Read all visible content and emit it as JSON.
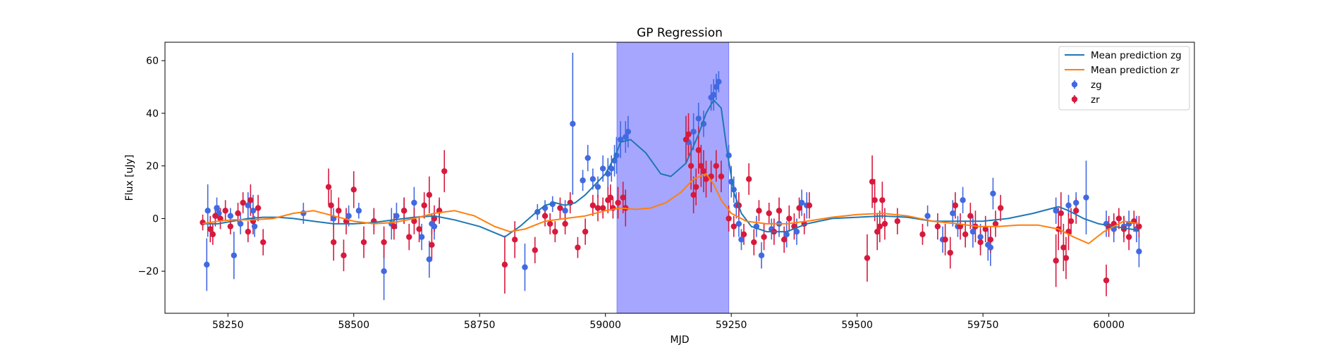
{
  "chart_data": {
    "type": "scatter",
    "title": "GP Regression",
    "xlabel": "MJD",
    "ylabel": "Flux [uJy]",
    "xlim": [
      58125,
      60170
    ],
    "ylim": [
      -36,
      67
    ],
    "xticks": [
      58250,
      58500,
      58750,
      59000,
      59250,
      59500,
      59750,
      60000
    ],
    "yticks": [
      -20,
      0,
      20,
      40,
      60
    ],
    "grid": false,
    "legend_position": "upper right",
    "shaded_region": {
      "x_start": 59023,
      "x_end": 59245,
      "color": "#a6a6ff"
    },
    "lines": [
      {
        "name": "Mean prediction zg",
        "color": "#1f77b4",
        "x": [
          58200,
          58230,
          58260,
          58290,
          58320,
          58350,
          58380,
          58420,
          58460,
          58500,
          58540,
          58580,
          58620,
          58660,
          58700,
          58750,
          58800,
          58830,
          58860,
          58880,
          58900,
          58920,
          58940,
          58960,
          58980,
          59000,
          59020,
          59030,
          59050,
          59080,
          59110,
          59130,
          59160,
          59185,
          59200,
          59215,
          59230,
          59240,
          59255,
          59270,
          59290,
          59320,
          59360,
          59400,
          59450,
          59500,
          59550,
          59600,
          59650,
          59700,
          59750,
          59800,
          59850,
          59900,
          59920,
          59950,
          59980,
          60010,
          60060
        ],
        "y": [
          -2,
          -2,
          -1,
          0,
          0.5,
          0.5,
          0,
          -1,
          -2,
          -2,
          -1.5,
          -0.5,
          0.5,
          1,
          -0.5,
          -3,
          -7,
          -3,
          2,
          5,
          6,
          5,
          6,
          9,
          13,
          17,
          24,
          29,
          30,
          25,
          17,
          16,
          21,
          32,
          40,
          45,
          42,
          28,
          10,
          2,
          -3,
          -5,
          -5,
          -2,
          0,
          0.5,
          1,
          0.5,
          -1,
          -1,
          -1,
          0,
          2,
          4.5,
          3,
          0,
          -2,
          -3,
          -4.5
        ]
      },
      {
        "name": "Mean prediction zr",
        "color": "#ff7f0e",
        "x": [
          58200,
          58230,
          58260,
          58300,
          58340,
          58380,
          58420,
          58460,
          58500,
          58540,
          58580,
          58620,
          58660,
          58700,
          58740,
          58780,
          58810,
          58840,
          58880,
          58920,
          58960,
          59000,
          59030,
          59060,
          59090,
          59120,
          59150,
          59175,
          59200,
          59215,
          59230,
          59250,
          59280,
          59320,
          59360,
          59400,
          59450,
          59500,
          59550,
          59600,
          59650,
          59700,
          59740,
          59780,
          59820,
          59860,
          59900,
          59930,
          59960,
          59990,
          60030,
          60060
        ],
        "y": [
          -2,
          -1,
          -0.5,
          -0.5,
          0,
          2,
          3,
          1,
          -1,
          -2,
          -1.5,
          0,
          2,
          3,
          1,
          -3,
          -5,
          -4,
          -1,
          0,
          1,
          3,
          4,
          3.5,
          4,
          6,
          10,
          15,
          17,
          13,
          7,
          2,
          -1,
          -2,
          -2,
          -1,
          0.5,
          1.5,
          2,
          1,
          -1,
          -2,
          -3,
          -3,
          -2.5,
          -2.5,
          -4,
          -7,
          -9.5,
          -5,
          -1,
          -2
        ]
      }
    ],
    "series": [
      {
        "name": "zg",
        "color": "#4169e1",
        "points": [
          [
            58208,
            -17.5,
            10
          ],
          [
            58210,
            3,
            10
          ],
          [
            58228,
            4,
            4
          ],
          [
            58232,
            2,
            3
          ],
          [
            58255,
            1,
            3
          ],
          [
            58262,
            -14,
            9
          ],
          [
            58275,
            -2,
            4
          ],
          [
            58290,
            5,
            5
          ],
          [
            58300,
            3,
            6
          ],
          [
            58303,
            -3,
            4
          ],
          [
            58400,
            2,
            4
          ],
          [
            58460,
            0,
            4
          ],
          [
            58490,
            1,
            4
          ],
          [
            58510,
            3,
            3
          ],
          [
            58540,
            -1,
            4
          ],
          [
            58560,
            -20,
            11
          ],
          [
            58575,
            -2,
            6
          ],
          [
            58585,
            1,
            5
          ],
          [
            58600,
            3,
            5
          ],
          [
            58620,
            6,
            6
          ],
          [
            58635,
            -7,
            5
          ],
          [
            58650,
            -15.5,
            7
          ],
          [
            58655,
            -2,
            4
          ],
          [
            58660,
            -3,
            5
          ],
          [
            58670,
            3,
            4
          ],
          [
            58840,
            -18.5,
            9
          ],
          [
            58865,
            2.5,
            3
          ],
          [
            58880,
            4,
            3
          ],
          [
            58895,
            5.5,
            3
          ],
          [
            58920,
            3,
            4
          ],
          [
            58935,
            36,
            27
          ],
          [
            58955,
            14.5,
            4
          ],
          [
            58965,
            23,
            5
          ],
          [
            58975,
            15,
            4
          ],
          [
            58985,
            12,
            4
          ],
          [
            58995,
            19,
            5
          ],
          [
            59005,
            17,
            6
          ],
          [
            59012,
            19,
            5
          ],
          [
            59018,
            22,
            6
          ],
          [
            59022,
            24,
            7
          ],
          [
            59030,
            30,
            7
          ],
          [
            59040,
            31,
            6
          ],
          [
            59045,
            33,
            6
          ],
          [
            59165,
            29,
            6
          ],
          [
            59175,
            33,
            7
          ],
          [
            59185,
            38,
            6
          ],
          [
            59195,
            36,
            5
          ],
          [
            59210,
            46,
            5
          ],
          [
            59215,
            47,
            6
          ],
          [
            59220,
            50,
            5
          ],
          [
            59225,
            52,
            4
          ],
          [
            59245,
            24,
            4
          ],
          [
            59250,
            14,
            6
          ],
          [
            59255,
            11,
            5
          ],
          [
            59260,
            5,
            5
          ],
          [
            59265,
            -2,
            5
          ],
          [
            59270,
            -8,
            4
          ],
          [
            59300,
            -3,
            4
          ],
          [
            59310,
            -14,
            5
          ],
          [
            59330,
            -4,
            4
          ],
          [
            59345,
            -2,
            5
          ],
          [
            59360,
            -6,
            5
          ],
          [
            59380,
            -5,
            5
          ],
          [
            59390,
            6,
            5
          ],
          [
            59400,
            5,
            5
          ],
          [
            59640,
            1,
            4
          ],
          [
            59670,
            -8,
            5
          ],
          [
            59690,
            2,
            5
          ],
          [
            59700,
            -3,
            4
          ],
          [
            59710,
            7,
            5
          ],
          [
            59730,
            -5,
            6
          ],
          [
            59745,
            -7,
            5
          ],
          [
            59760,
            -10,
            6
          ],
          [
            59765,
            -11,
            7
          ],
          [
            59770,
            9.5,
            6
          ],
          [
            59895,
            3,
            5
          ],
          [
            59920,
            5,
            4
          ],
          [
            59935,
            6,
            4
          ],
          [
            59955,
            8,
            14
          ],
          [
            59995,
            -2,
            5
          ],
          [
            60010,
            -4,
            5
          ],
          [
            60030,
            -3,
            4
          ],
          [
            60040,
            -2,
            5
          ],
          [
            60055,
            -4,
            5
          ],
          [
            60060,
            -12.5,
            6
          ]
        ]
      },
      {
        "name": "zr",
        "color": "#d7193d",
        "points": [
          [
            58200,
            -1.5,
            3
          ],
          [
            58215,
            -4,
            5
          ],
          [
            58220,
            -6,
            4
          ],
          [
            58225,
            1,
            4
          ],
          [
            58235,
            0,
            4
          ],
          [
            58245,
            3,
            4
          ],
          [
            58255,
            -3,
            3
          ],
          [
            58270,
            2,
            4
          ],
          [
            58280,
            6,
            4
          ],
          [
            58290,
            -5,
            4
          ],
          [
            58295,
            7,
            6
          ],
          [
            58300,
            -1,
            5
          ],
          [
            58310,
            4,
            5
          ],
          [
            58320,
            -9,
            5
          ],
          [
            58450,
            12,
            7
          ],
          [
            58455,
            5,
            6
          ],
          [
            58460,
            -9,
            7
          ],
          [
            58470,
            3,
            5
          ],
          [
            58480,
            -14,
            6
          ],
          [
            58485,
            -1,
            5
          ],
          [
            58500,
            11,
            7
          ],
          [
            58520,
            -9,
            6
          ],
          [
            58540,
            -1,
            5
          ],
          [
            58560,
            -9,
            6
          ],
          [
            58580,
            -3,
            5
          ],
          [
            58600,
            3,
            5
          ],
          [
            58610,
            -7,
            5
          ],
          [
            58620,
            -1,
            5
          ],
          [
            58630,
            -4,
            5
          ],
          [
            58640,
            5,
            5
          ],
          [
            58650,
            9,
            7
          ],
          [
            58655,
            -10,
            6
          ],
          [
            58660,
            0,
            5
          ],
          [
            58670,
            3,
            5
          ],
          [
            58680,
            18,
            8
          ],
          [
            58800,
            -17.5,
            11
          ],
          [
            58820,
            -8,
            7
          ],
          [
            58860,
            -12,
            5
          ],
          [
            58880,
            1,
            4
          ],
          [
            58890,
            -2,
            4
          ],
          [
            58900,
            -5,
            4
          ],
          [
            58910,
            4,
            4
          ],
          [
            58920,
            -2,
            4
          ],
          [
            58930,
            6,
            4
          ],
          [
            58945,
            -11,
            4
          ],
          [
            58960,
            -5,
            5
          ],
          [
            58975,
            5,
            4
          ],
          [
            58985,
            4,
            5
          ],
          [
            58995,
            4,
            4
          ],
          [
            59005,
            7,
            5
          ],
          [
            59010,
            8,
            5
          ],
          [
            59015,
            4,
            4
          ],
          [
            59025,
            6,
            6
          ],
          [
            59035,
            8,
            6
          ],
          [
            59040,
            4,
            7
          ],
          [
            59160,
            30,
            9
          ],
          [
            59165,
            32,
            8
          ],
          [
            59170,
            20,
            9
          ],
          [
            59175,
            9,
            7
          ],
          [
            59180,
            12,
            7
          ],
          [
            59185,
            26,
            9
          ],
          [
            59190,
            20,
            8
          ],
          [
            59195,
            18,
            8
          ],
          [
            59200,
            15,
            7
          ],
          [
            59210,
            16,
            6
          ],
          [
            59220,
            20,
            6
          ],
          [
            59230,
            16,
            6
          ],
          [
            59245,
            0,
            5
          ],
          [
            59255,
            -3,
            4
          ],
          [
            59265,
            5,
            5
          ],
          [
            59275,
            -6,
            4
          ],
          [
            59285,
            15,
            6
          ],
          [
            59295,
            -9,
            5
          ],
          [
            59305,
            3,
            4
          ],
          [
            59315,
            -7,
            5
          ],
          [
            59325,
            2,
            4
          ],
          [
            59335,
            -5,
            5
          ],
          [
            59345,
            3,
            5
          ],
          [
            59355,
            -8,
            5
          ],
          [
            59365,
            0,
            5
          ],
          [
            59375,
            -3,
            5
          ],
          [
            59385,
            4,
            4
          ],
          [
            59395,
            -2,
            4
          ],
          [
            59405,
            5,
            5
          ],
          [
            59520,
            -15,
            9
          ],
          [
            59530,
            14,
            10
          ],
          [
            59535,
            7,
            8
          ],
          [
            59540,
            -5,
            7
          ],
          [
            59545,
            -3,
            6
          ],
          [
            59550,
            7,
            7
          ],
          [
            59555,
            -2,
            6
          ],
          [
            59580,
            -1,
            5
          ],
          [
            59630,
            -6,
            4
          ],
          [
            59660,
            -3,
            5
          ],
          [
            59675,
            -8,
            6
          ],
          [
            59685,
            -13,
            6
          ],
          [
            59695,
            5,
            5
          ],
          [
            59705,
            -3,
            5
          ],
          [
            59715,
            -6,
            5
          ],
          [
            59725,
            1,
            5
          ],
          [
            59735,
            -3,
            6
          ],
          [
            59745,
            -9,
            5
          ],
          [
            59755,
            -4,
            5
          ],
          [
            59765,
            -8,
            5
          ],
          [
            59775,
            -2,
            5
          ],
          [
            59785,
            4,
            5
          ],
          [
            59895,
            -16,
            10
          ],
          [
            59900,
            -4,
            8
          ],
          [
            59905,
            2,
            8
          ],
          [
            59910,
            -11,
            9
          ],
          [
            59915,
            -15,
            8
          ],
          [
            59920,
            -5,
            7
          ],
          [
            59925,
            -1,
            5
          ],
          [
            59935,
            3,
            5
          ],
          [
            59995,
            -23.5,
            6
          ],
          [
            60000,
            -3,
            4
          ],
          [
            60010,
            -2,
            4
          ],
          [
            60020,
            0,
            4
          ],
          [
            60030,
            -4,
            5
          ],
          [
            60040,
            -7,
            5
          ],
          [
            60050,
            -1,
            4
          ],
          [
            60060,
            -3,
            4
          ]
        ]
      }
    ]
  }
}
